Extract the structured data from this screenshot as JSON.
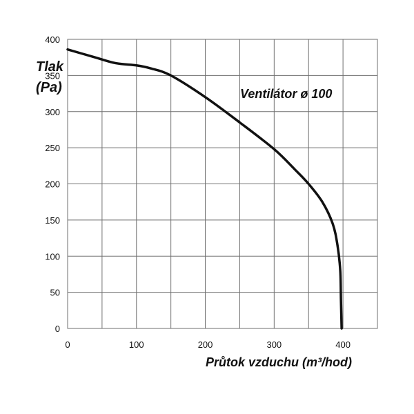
{
  "chart_data": {
    "type": "line",
    "title": "",
    "annotation": "Ventilátor ø 100",
    "ylabel_line1": "Tlak",
    "ylabel_line2": "(Pa)",
    "xlabel": "Průtok vzduchu (m³/hod)",
    "xlim": [
      0,
      450
    ],
    "ylim": [
      0,
      400
    ],
    "x_ticks": [
      0,
      100,
      200,
      300,
      400
    ],
    "y_ticks": [
      0,
      50,
      100,
      150,
      200,
      250,
      300,
      350,
      400
    ],
    "x_grid_step": 50,
    "y_grid_step": 50,
    "grid": true,
    "series": [
      {
        "color": "#111111",
        "points": [
          [
            0,
            386
          ],
          [
            40,
            375
          ],
          [
            70,
            367
          ],
          [
            100,
            364
          ],
          [
            120,
            360
          ],
          [
            150,
            350
          ],
          [
            200,
            320
          ],
          [
            250,
            285
          ],
          [
            300,
            248
          ],
          [
            330,
            220
          ],
          [
            350,
            200
          ],
          [
            370,
            175
          ],
          [
            385,
            145
          ],
          [
            392,
            115
          ],
          [
            396,
            80
          ],
          [
            397,
            40
          ],
          [
            398,
            0
          ]
        ]
      }
    ]
  }
}
